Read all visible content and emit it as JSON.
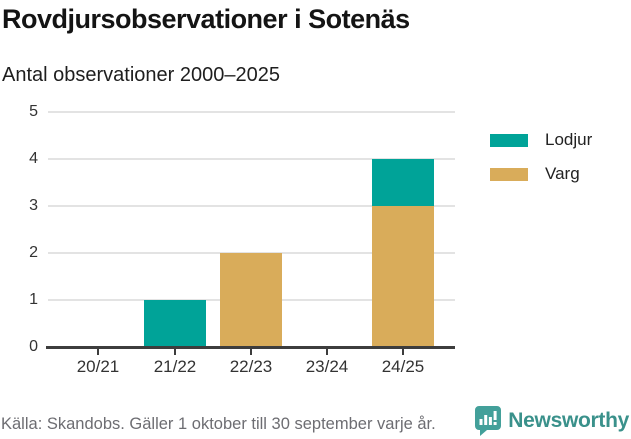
{
  "chart_data": {
    "type": "bar",
    "stacked": true,
    "title": "Rovdjursobservationer i Sotenäs",
    "subtitle": "Antal observationer 2000–2025",
    "categories": [
      "20/21",
      "21/22",
      "22/23",
      "23/24",
      "24/25"
    ],
    "series": [
      {
        "name": "Lodjur",
        "color": "#00a398",
        "values": [
          0,
          1,
          0,
          0,
          1
        ]
      },
      {
        "name": "Varg",
        "color": "#d9ac5a",
        "values": [
          0,
          0,
          2,
          0,
          3
        ]
      }
    ],
    "stack_order_bottom_to_top": [
      "Varg",
      "Lodjur"
    ],
    "ylim": [
      0,
      5
    ],
    "yticks": [
      0,
      1,
      2,
      3,
      4,
      5
    ],
    "grid": true,
    "legend_position": "right"
  },
  "footer": {
    "source": "Källa: Skandobs. Gäller 1 oktober till 30 september varje år.",
    "brand": "Newsworthy"
  },
  "colors": {
    "lodjur": "#00a398",
    "varg": "#d9ac5a",
    "gridline": "#e3e3e3",
    "axis": "#3d3d3d",
    "brand_icon": "#43a09a",
    "brand_wordmark": "#3a918b"
  }
}
